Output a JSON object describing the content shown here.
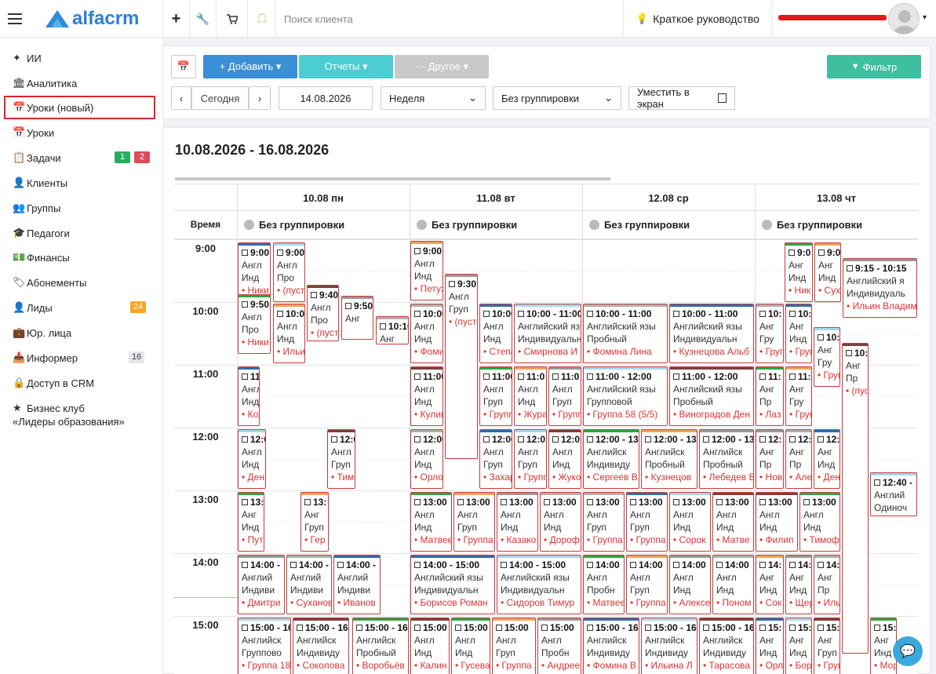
{
  "topbar": {
    "brand": "alfacrm",
    "search_placeholder": "Поиск клиента",
    "guide_label": "Краткое руководство"
  },
  "sidebar": {
    "items": [
      {
        "label": "ИИ",
        "icon": "sparkle-icon"
      },
      {
        "label": "Аналитика",
        "icon": "institution-icon"
      },
      {
        "label": "Уроки (новый)",
        "icon": "calendar-icon"
      },
      {
        "label": "Уроки",
        "icon": "calendar-icon"
      },
      {
        "label": "Задачи",
        "icon": "task-icon"
      },
      {
        "label": "Клиенты",
        "icon": "user-icon"
      },
      {
        "label": "Группы",
        "icon": "users-icon"
      },
      {
        "label": "Педагоги",
        "icon": "graduation-cap-icon"
      },
      {
        "label": "Финансы",
        "icon": "money-icon"
      },
      {
        "label": "Абонементы",
        "icon": "tag-icon"
      },
      {
        "label": "Лиды",
        "icon": "user-icon"
      },
      {
        "label": "Юр. лица",
        "icon": "briefcase-icon"
      },
      {
        "label": "Информер",
        "icon": "inbox-icon"
      },
      {
        "label": "Доступ в CRM",
        "icon": "lock-icon"
      },
      {
        "label": "Бизнес клуб",
        "icon": "star-icon"
      }
    ],
    "club_line2": "«Лидеры образования»",
    "badges": {
      "tasks_green": "1",
      "tasks_red": "2",
      "leads": "24",
      "informer": "16"
    }
  },
  "toolbar": {
    "add": "+ Добавить ▾",
    "reports": "Отчеты ▾",
    "other": "··· Другое ▾",
    "filter": "Фильтр",
    "today": "Сегодня",
    "date": "14.08.2026",
    "view": "Неделя",
    "grouping": "Без группировки",
    "fit": "Уместить в экран"
  },
  "calendar": {
    "range": "10.08.2026 - 16.08.2026",
    "time_header": "Время",
    "group_label": "Без группировки",
    "days": [
      "10.08 пн",
      "11.08 вт",
      "12.08 ср",
      "13.08 чт"
    ],
    "hours": [
      "9:00",
      "10:00",
      "11:00",
      "12:00",
      "13:00",
      "14:00",
      "15:00"
    ]
  },
  "events": [
    {
      "l1": "9:00",
      "l2": "Англ",
      "l3": "Инд",
      "l4": "Ники"
    },
    {
      "l1": "9:00",
      "l2": "Англ",
      "l3": "Про",
      "l4": "(пуст"
    },
    {
      "l1": "9:40",
      "l2": "Англ",
      "l3": "Про",
      "l4": "(пуст"
    },
    {
      "l1": "9:50",
      "l2": "Англ",
      "l3": "Про",
      "l4": "Ники"
    },
    {
      "l1": "10:0",
      "l2": "Англ",
      "l3": "Инд",
      "l4": "Ильи"
    },
    {
      "l1": "9:50",
      "l2": "Анг",
      "l3": "",
      "l4": ""
    },
    {
      "l1": "10:10",
      "l2": "Анг",
      "l3": "",
      "l4": ""
    },
    {
      "l1": "11:0",
      "l2": "Англ",
      "l3": "Инд",
      "l4": "Кол"
    },
    {
      "l1": "12:00",
      "l2": "Англ",
      "l3": "Инд",
      "l4": "Ден"
    },
    {
      "l1": "12:0",
      "l2": "Англ",
      "l3": "Груп",
      "l4": "Тимо"
    },
    {
      "l1": "13:",
      "l2": "Анг",
      "l3": "Инд",
      "l4": "Пут"
    },
    {
      "l1": "13:",
      "l2": "Анг",
      "l3": "Груп",
      "l4": "Гер"
    },
    {
      "l1": "14:00 -",
      "l2": "Англий",
      "l3": "Индиви",
      "l4": "Дмитри"
    },
    {
      "l1": "14:00 -",
      "l2": "Англий",
      "l3": "Индиви",
      "l4": "Суханов"
    },
    {
      "l1": "14:00 -",
      "l2": "Англий",
      "l3": "Индиви",
      "l4": "Иванов"
    },
    {
      "l1": "15:00 - 16",
      "l2": "Английск",
      "l3": "Группово",
      "l4": "Группа 18 ("
    },
    {
      "l1": "15:00 - 16",
      "l2": "Английск",
      "l3": "Индивиду",
      "l4": "Соколова"
    },
    {
      "l1": "15:00 - 16",
      "l2": "Английск",
      "l3": "Пробный",
      "l4": "Воробьёв"
    },
    {
      "l1": "9:00",
      "l2": "Англ",
      "l3": "Инд",
      "l4": "Петух"
    },
    {
      "l1": "9:30",
      "l2": "Англ",
      "l3": "Груп",
      "l4": "(пусто"
    },
    {
      "l1": "10:00",
      "l2": "Англ",
      "l3": "Инд",
      "l4": "Фомин"
    },
    {
      "l1": "10:00",
      "l2": "Англ",
      "l3": "Инд",
      "l4": "Степа"
    },
    {
      "l1": "10:00 - 11:00",
      "l2": "Английский яз",
      "l3": "Индивидуальн",
      "l4": "Смирнова И"
    },
    {
      "l1": "11:00",
      "l2": "Англ",
      "l3": "Инд",
      "l4": "Кулик"
    },
    {
      "l1": "11:00",
      "l2": "Англ",
      "l3": "Груп",
      "l4": "Группа"
    },
    {
      "l1": "11:0",
      "l2": "Англ",
      "l3": "Инд",
      "l4": "Жура"
    },
    {
      "l1": "11:0",
      "l2": "Англ",
      "l3": "Груп",
      "l4": "Группа"
    },
    {
      "l1": "12:00",
      "l2": "Англ",
      "l3": "Инд",
      "l4": "Орлов"
    },
    {
      "l1": "12:00",
      "l2": "Англ",
      "l3": "Груп",
      "l4": "Захар"
    },
    {
      "l1": "12:0",
      "l2": "Англ",
      "l3": "Груп",
      "l4": "Группа"
    },
    {
      "l1": "12:0",
      "l2": "Англ",
      "l3": "Инд",
      "l4": "Жуков"
    },
    {
      "l1": "13:00",
      "l2": "Англ",
      "l3": "Инд",
      "l4": "Матвее"
    },
    {
      "l1": "13:00",
      "l2": "Англ",
      "l3": "Груп",
      "l4": "Группа 3"
    },
    {
      "l1": "13:00",
      "l2": "Англ",
      "l3": "Инд",
      "l4": "Казако"
    },
    {
      "l1": "13:00",
      "l2": "Англ",
      "l3": "Инд",
      "l4": "Дороф"
    },
    {
      "l1": "14:00 - 15:00",
      "l2": "Английский язы",
      "l3": "Индивидуальн",
      "l4": "Борисов Роман"
    },
    {
      "l1": "14:00 - 15:00",
      "l2": "Английский язы",
      "l3": "Индивидуальн",
      "l4": "Сидоров Тимур"
    },
    {
      "l1": "15:00",
      "l2": "Англ",
      "l3": "Инд",
      "l4": "Калин"
    },
    {
      "l1": "15:00",
      "l2": "Англ",
      "l3": "Инд",
      "l4": "Гусева"
    },
    {
      "l1": "15:00",
      "l2": "Англ",
      "l3": "Груп",
      "l4": "Группа 2"
    },
    {
      "l1": "15:00",
      "l2": "Англ",
      "l3": "Пробн",
      "l4": "Андрее"
    },
    {
      "l1": "10:00 - 11:00",
      "l2": "Английский язы",
      "l3": "Пробный",
      "l4": "Фомина Лина"
    },
    {
      "l1": "10:00 - 11:00",
      "l2": "Английский язы",
      "l3": "Индивидуальн",
      "l4": "Кузнецова Альб"
    },
    {
      "l1": "11:00 - 12:00",
      "l2": "Английский язы",
      "l3": "Групповой",
      "l4": "Группа 58 (5/5)"
    },
    {
      "l1": "11:00 - 12:00",
      "l2": "Английский язы",
      "l3": "Пробный",
      "l4": "Виноградов Ден"
    },
    {
      "l1": "12:00 - 13",
      "l2": "Английск",
      "l3": "Индивиду",
      "l4": "Сергеев В"
    },
    {
      "l1": "12:00 - 13",
      "l2": "Английск",
      "l3": "Пробный",
      "l4": "Кузнецов"
    },
    {
      "l1": "12:00 - 13",
      "l2": "Английск",
      "l3": "Пробный",
      "l4": "Лебедев В"
    },
    {
      "l1": "13:00",
      "l2": "Англ",
      "l3": "Груп",
      "l4": "Группа 2"
    },
    {
      "l1": "13:00",
      "l2": "Англ",
      "l3": "Груп",
      "l4": "Группа 2"
    },
    {
      "l1": "13:00",
      "l2": "Англ",
      "l3": "Инд",
      "l4": "Сорок"
    },
    {
      "l1": "13:00",
      "l2": "Англ",
      "l3": "Инд",
      "l4": "Матве"
    },
    {
      "l1": "14:00",
      "l2": "Англ",
      "l3": "Пробн",
      "l4": "Матвее"
    },
    {
      "l1": "14:00",
      "l2": "Англ",
      "l3": "Груп",
      "l4": "Группа 3"
    },
    {
      "l1": "14:00",
      "l2": "Англ",
      "l3": "Инд",
      "l4": "Алексе"
    },
    {
      "l1": "14:00",
      "l2": "Англ",
      "l3": "Инд",
      "l4": "Поном"
    },
    {
      "l1": "15:00 - 16",
      "l2": "Английск",
      "l3": "Индивиду",
      "l4": "Фомина В"
    },
    {
      "l1": "15:00 - 16",
      "l2": "Английск",
      "l3": "Индивиду",
      "l4": "Ильина Л"
    },
    {
      "l1": "15:00 - 16",
      "l2": "Английск",
      "l3": "Индивиду",
      "l4": "Тарасова"
    },
    {
      "l1": "9:0",
      "l2": "Анг",
      "l3": "Инд",
      "l4": "Ник"
    },
    {
      "l1": "9:0",
      "l2": "Анг",
      "l3": "Инд",
      "l4": "Суха"
    },
    {
      "l1": "9:15 - 10:15",
      "l2": "Английский я",
      "l3": "Индивидуаль",
      "l4": "Ильин Владим"
    },
    {
      "l1": "10:",
      "l2": "Анг",
      "l3": "Гру",
      "l4": "Груп"
    },
    {
      "l1": "10:",
      "l2": "Анг",
      "l3": "Инд",
      "l4": "Груп"
    },
    {
      "l1": "10:",
      "l2": "Анг",
      "l3": "Гру",
      "l4": "Груп"
    },
    {
      "l1": "10:",
      "l2": "Анг",
      "l3": "Пр",
      "l4": "(пус"
    },
    {
      "l1": "11:",
      "l2": "Анг",
      "l3": "Пр",
      "l4": "Лаз"
    },
    {
      "l1": "11:",
      "l2": "Анг",
      "l3": "Гру",
      "l4": "Груп"
    },
    {
      "l1": "12:",
      "l2": "Анг",
      "l3": "Пр",
      "l4": "Нов"
    },
    {
      "l1": "12:",
      "l2": "Анг",
      "l3": "Пр",
      "l4": "Але"
    },
    {
      "l1": "12:",
      "l2": "Анг",
      "l3": "Инд",
      "l4": "Ден"
    },
    {
      "l1": "12:40 -",
      "l2": "Англий",
      "l3": "Одиноч",
      "l4": ""
    },
    {
      "l1": "13:00",
      "l2": "Англ",
      "l3": "Инд",
      "l4": "Филип"
    },
    {
      "l1": "13:00",
      "l2": "Англ",
      "l3": "Инд",
      "l4": "Тимоф"
    },
    {
      "l1": "14:",
      "l2": "Анг",
      "l3": "Инд",
      "l4": "Сок"
    },
    {
      "l1": "14:",
      "l2": "Анг",
      "l3": "Инд",
      "l4": "Щер"
    },
    {
      "l1": "14:",
      "l2": "Анг",
      "l3": "Пр",
      "l4": "Иль"
    },
    {
      "l1": "15:",
      "l2": "Анг",
      "l3": "Инд",
      "l4": "Орл"
    },
    {
      "l1": "15:",
      "l2": "Анг",
      "l3": "Инд",
      "l4": "Бор"
    },
    {
      "l1": "15:",
      "l2": "Анг",
      "l3": "Груп",
      "l4": "Груп"
    },
    {
      "l1": "15:",
      "l2": "Анг",
      "l3": "Инд",
      "l4": "Мор"
    }
  ]
}
